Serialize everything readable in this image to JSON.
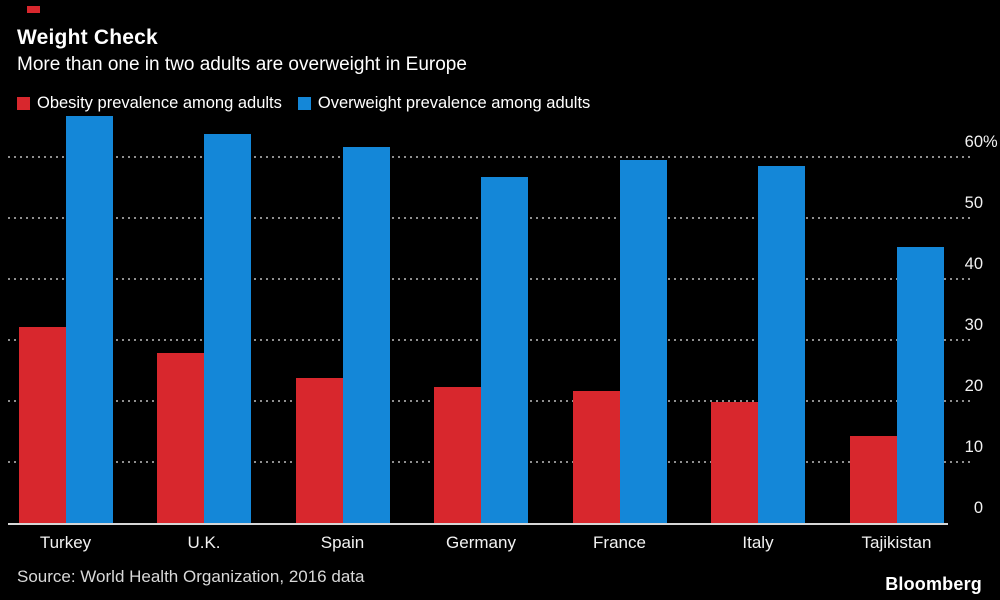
{
  "header": {
    "title": "Weight Check",
    "subtitle": "More than one in two adults are overweight in Europe"
  },
  "legend": {
    "items": [
      {
        "label": "Obesity prevalence among adults",
        "color": "#d8272d"
      },
      {
        "label": "Overweight prevalence among adults",
        "color": "#1487d8"
      }
    ]
  },
  "chart_data": {
    "type": "bar",
    "title": "Weight Check",
    "subtitle": "More than one in two adults are overweight in Europe",
    "categories": [
      "Turkey",
      "U.K.",
      "Spain",
      "Germany",
      "France",
      "Italy",
      "Tajikistan"
    ],
    "series": [
      {
        "name": "Obesity prevalence among adults",
        "color": "#d8272d",
        "values": [
          32.1,
          27.8,
          23.8,
          22.3,
          21.6,
          19.9,
          14.2
        ]
      },
      {
        "name": "Overweight prevalence among adults",
        "color": "#1487d8",
        "values": [
          66.8,
          63.7,
          61.6,
          56.8,
          59.5,
          58.5,
          45.2
        ]
      }
    ],
    "y_axis": {
      "side": "right",
      "unit_suffix": "%",
      "ticks": [
        {
          "value": 60,
          "label": "60",
          "suffix": "%"
        },
        {
          "value": 50,
          "label": "50",
          "suffix": ""
        },
        {
          "value": 40,
          "label": "40",
          "suffix": ""
        },
        {
          "value": 30,
          "label": "30",
          "suffix": ""
        },
        {
          "value": 20,
          "label": "20",
          "suffix": ""
        },
        {
          "value": 10,
          "label": "10",
          "suffix": ""
        },
        {
          "value": 0,
          "label": "0",
          "suffix": ""
        }
      ],
      "ylim": [
        0,
        67
      ]
    },
    "grid": "horizontal-dotted",
    "legend_position": "top-left",
    "xlabel": "",
    "ylabel": ""
  },
  "footer": {
    "source": "Source: World Health Organization, 2016 data",
    "brand": "Bloomberg"
  },
  "colors": {
    "background": "#000000",
    "obesity_red": "#d8272d",
    "overweight_blue": "#1487d8",
    "gridline": "#8f8f8f",
    "axis_line": "#d6d6d6",
    "text": "#ffffff",
    "accent_mark": "#d8272d"
  }
}
